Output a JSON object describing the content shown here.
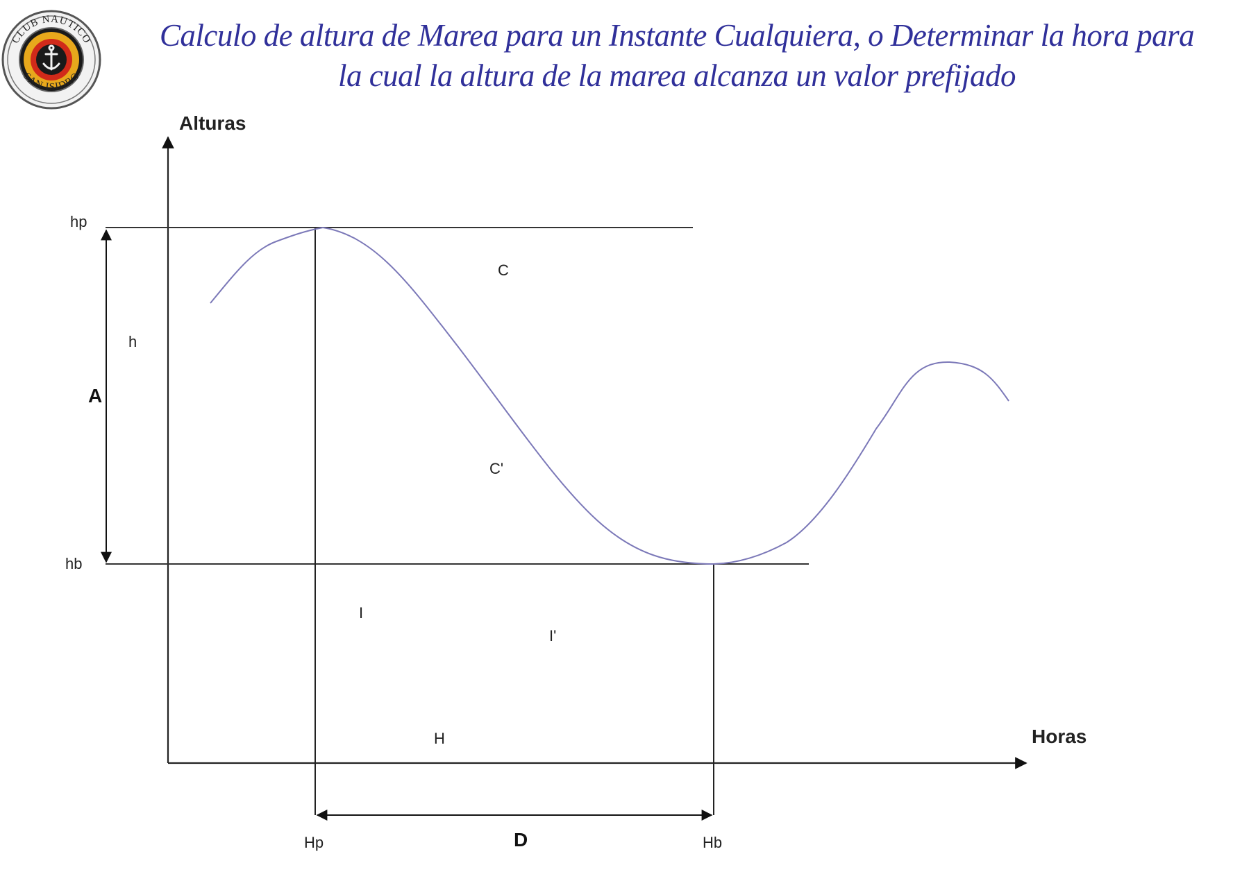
{
  "title": {
    "line1": "Calculo de altura de Marea para un Instante Cualquiera, o Determinar la hora para",
    "line2": "la cual la altura de la marea alcanza un valor prefijado",
    "color": "#30309a"
  },
  "logo": {
    "top_text": "CLUB NAUTICO",
    "bottom_text": "SAN ISIDRO"
  },
  "diagram": {
    "y_axis_title": "Alturas",
    "x_axis_title": "Horas",
    "labels": {
      "hp": "hp",
      "hb": "hb",
      "A": "A",
      "h": "h",
      "C": "C",
      "C_prime": "C'",
      "I": "I",
      "I_prime": "I'",
      "H": "H",
      "Hp": "Hp",
      "Hb": "Hb",
      "D": "D"
    },
    "curve_color": "#7b78b8"
  }
}
